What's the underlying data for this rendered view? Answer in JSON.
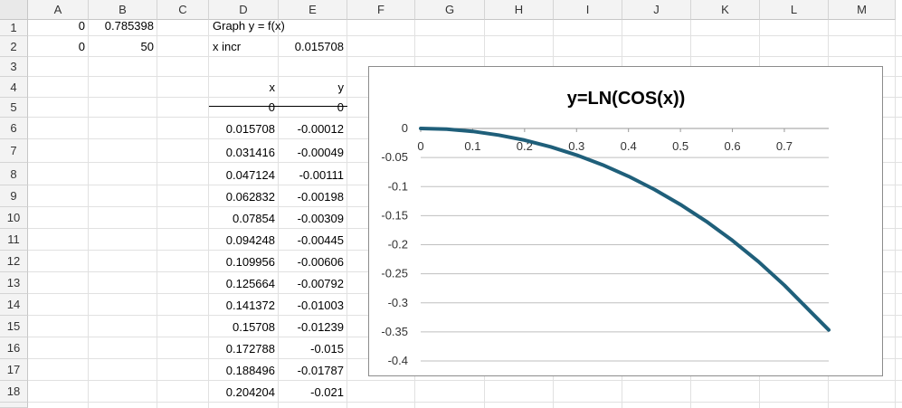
{
  "columns": [
    "A",
    "B",
    "C",
    "D",
    "E",
    "F",
    "G",
    "H",
    "I",
    "J",
    "K",
    "L",
    "M"
  ],
  "rows": [
    "1",
    "2",
    "3",
    "4",
    "5",
    "6",
    "7",
    "8",
    "9",
    "10",
    "11",
    "12",
    "13",
    "14",
    "15",
    "16",
    "17",
    "18"
  ],
  "cells": {
    "A1": "0",
    "B1": "0.785398",
    "D1": "Graph y = f(x)",
    "A2": "0",
    "B2": "50",
    "D2": "x incr",
    "E2": "0.015708",
    "D4": "x",
    "E4": "y",
    "D5": "0",
    "E5": "0",
    "D6": "0.015708",
    "E6": "-0.00012",
    "D7": "0.031416",
    "E7": "-0.00049",
    "D8": "0.047124",
    "E8": "-0.00111",
    "D9": "0.062832",
    "E9": "-0.00198",
    "D10": "0.07854",
    "E10": "-0.00309",
    "D11": "0.094248",
    "E11": "-0.00445",
    "D12": "0.109956",
    "E12": "-0.00606",
    "D13": "0.125664",
    "E13": "-0.00792",
    "D14": "0.141372",
    "E14": "-0.01003",
    "D15": "0.15708",
    "E15": "-0.01239",
    "D16": "0.172788",
    "E16": "-0.015",
    "D17": "0.188496",
    "E17": "-0.01787",
    "D18": "0.204204",
    "E18": "-0.021"
  },
  "chart_data": {
    "type": "line",
    "title": "y=LN(COS(x))",
    "xlabel": "",
    "ylabel": "",
    "x_ticks": [
      "0",
      "0.1",
      "0.2",
      "0.3",
      "0.4",
      "0.5",
      "0.6",
      "0.7"
    ],
    "y_ticks": [
      "0",
      "-0.05",
      "-0.1",
      "-0.15",
      "-0.2",
      "-0.25",
      "-0.3",
      "-0.35",
      "-0.4"
    ],
    "xlim": [
      0,
      0.785398
    ],
    "ylim": [
      -0.4,
      0
    ],
    "series": [
      {
        "color": "#1f5f7a",
        "x": [
          0,
          0.05,
          0.1,
          0.15,
          0.2,
          0.25,
          0.3,
          0.35,
          0.4,
          0.45,
          0.5,
          0.55,
          0.6,
          0.65,
          0.7,
          0.75,
          0.785398
        ],
        "y": [
          0,
          -0.00125,
          -0.005,
          -0.01129,
          -0.02013,
          -0.03157,
          -0.04569,
          -0.06256,
          -0.08228,
          -0.10499,
          -0.13083,
          -0.15999,
          -0.19268,
          -0.22917,
          -0.26976,
          -0.31482,
          -0.34657
        ]
      }
    ],
    "grid": true,
    "legend": "none"
  }
}
